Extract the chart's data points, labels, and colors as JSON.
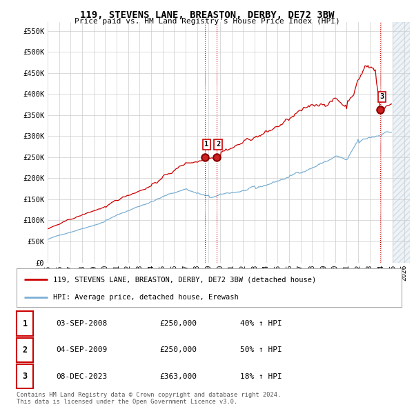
{
  "title": "119, STEVENS LANE, BREASTON, DERBY, DE72 3BW",
  "subtitle": "Price paid vs. HM Land Registry's House Price Index (HPI)",
  "ylabel_ticks": [
    "£0",
    "£50K",
    "£100K",
    "£150K",
    "£200K",
    "£250K",
    "£300K",
    "£350K",
    "£400K",
    "£450K",
    "£500K",
    "£550K"
  ],
  "ytick_values": [
    0,
    50000,
    100000,
    150000,
    200000,
    250000,
    300000,
    350000,
    400000,
    450000,
    500000,
    550000
  ],
  "ylim": [
    0,
    570000
  ],
  "xlim_start": 1995.0,
  "xlim_end": 2026.5,
  "xtick_years": [
    1995,
    1996,
    1997,
    1998,
    1999,
    2000,
    2001,
    2002,
    2003,
    2004,
    2005,
    2006,
    2007,
    2008,
    2009,
    2010,
    2011,
    2012,
    2013,
    2014,
    2015,
    2016,
    2017,
    2018,
    2019,
    2020,
    2021,
    2022,
    2023,
    2024,
    2025,
    2026
  ],
  "red_line_color": "#cc0000",
  "blue_line_color": "#7bafd4",
  "grid_color": "#cccccc",
  "bg_color": "#ffffff",
  "legend_label_red": "119, STEVENS LANE, BREASTON, DERBY, DE72 3BW (detached house)",
  "legend_label_blue": "HPI: Average price, detached house, Erewash",
  "sale1_x": 2008.67,
  "sale1_y": 250000,
  "sale1_label": "1",
  "sale2_x": 2009.67,
  "sale2_y": 250000,
  "sale2_label": "2",
  "sale3_x": 2023.92,
  "sale3_y": 363000,
  "sale3_label": "3",
  "future_start": 2025.0,
  "table_rows": [
    {
      "num": "1",
      "date": "03-SEP-2008",
      "price": "£250,000",
      "hpi": "40% ↑ HPI"
    },
    {
      "num": "2",
      "date": "04-SEP-2009",
      "price": "£250,000",
      "hpi": "50% ↑ HPI"
    },
    {
      "num": "3",
      "date": "08-DEC-2023",
      "price": "£363,000",
      "hpi": "18% ↑ HPI"
    }
  ],
  "footnote": "Contains HM Land Registry data © Crown copyright and database right 2024.\nThis data is licensed under the Open Government Licence v3.0."
}
